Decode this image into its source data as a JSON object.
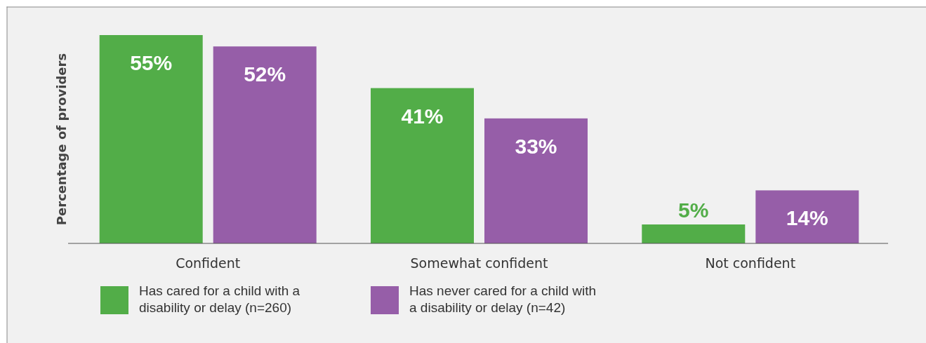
{
  "chart_data": {
    "type": "bar",
    "ylabel": "Percentage of providers",
    "categories": [
      "Confident",
      "Somewhat confident",
      "Not confident"
    ],
    "series": [
      {
        "name": "Has cared for a child with a disability or delay (n=260)",
        "color": "#52ad48",
        "values": [
          55,
          41,
          5
        ],
        "value_labels": [
          "55%",
          "41%",
          "5%"
        ]
      },
      {
        "name": "Has never cared for a child with a disability or delay (n=42)",
        "color": "#965ea8",
        "values": [
          52,
          33,
          14
        ],
        "value_labels": [
          "52%",
          "33%",
          "14%"
        ]
      }
    ],
    "legend": "bottom"
  }
}
